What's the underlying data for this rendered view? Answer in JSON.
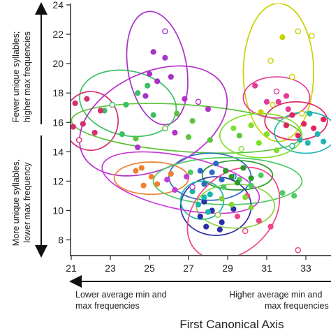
{
  "chart_data": {
    "type": "scatter",
    "xlim": [
      21,
      34
    ],
    "ylim": [
      7,
      24
    ],
    "x_ticks": [
      "21",
      "23",
      "25",
      "27",
      "29",
      "31",
      "33"
    ],
    "y_ticks": [
      "8",
      "10",
      "12",
      "14",
      "16",
      "18",
      "20",
      "22",
      "24"
    ],
    "xlabel": "First Canonical Axis",
    "x_annotation_left": [
      "Lower average min and",
      "max frequencies"
    ],
    "x_annotation_right": [
      "Higher average min and",
      "max frequencies"
    ],
    "y_annotation_top": [
      "Fewer unique syllables;",
      "higher max frequencies"
    ],
    "y_annotation_bottom": [
      "More unique  syllables,",
      "lower max frequency"
    ],
    "grid": false,
    "groups": [
      {
        "color": "#c9d200",
        "ellipse": {
          "cx": 31.6,
          "cy": 19.4,
          "rx": 1.8,
          "ry": 4.7,
          "angle": 0
        },
        "points": [
          [
            31.8,
            21.8,
            1
          ],
          [
            32.6,
            22.2,
            0
          ],
          [
            33.3,
            21.9,
            0
          ],
          [
            31.2,
            20.2,
            0
          ],
          [
            32.3,
            19.1,
            0
          ],
          [
            31.3,
            17.2,
            0
          ],
          [
            32.8,
            16.6,
            0
          ],
          [
            30.7,
            16.7,
            1
          ]
        ]
      },
      {
        "color": "#a632c8",
        "ellipse": {
          "cx": 25.4,
          "cy": 19.7,
          "rx": 1.5,
          "ry": 3.9,
          "angle": -10
        },
        "points": [
          [
            25.8,
            22.2,
            0
          ],
          [
            25.2,
            20.8,
            1
          ],
          [
            25.8,
            20.4,
            1
          ],
          [
            25.0,
            19.3,
            1
          ],
          [
            25.4,
            18.8,
            1
          ],
          [
            26.1,
            19.1,
            1
          ],
          [
            24.8,
            17.8,
            1
          ]
        ]
      },
      {
        "color": "#3cbf64",
        "ellipse": {
          "cx": 23.9,
          "cy": 17.3,
          "rx": 2.5,
          "ry": 2.2,
          "angle": 12
        },
        "points": [
          [
            24.4,
            18.0,
            1
          ],
          [
            24.9,
            18.5,
            1
          ],
          [
            23.8,
            17.2,
            1
          ],
          [
            23.1,
            17.2,
            0
          ],
          [
            25.2,
            16.5,
            1
          ],
          [
            22.7,
            16.8,
            1
          ],
          [
            23.6,
            15.2,
            1
          ]
        ]
      },
      {
        "color": "#d62e6e",
        "ellipse": {
          "cx": 22.0,
          "cy": 16.1,
          "rx": 1.4,
          "ry": 2.0,
          "angle": 0
        },
        "points": [
          [
            21.2,
            17.3,
            1
          ],
          [
            21.8,
            17.6,
            1
          ],
          [
            22.5,
            16.8,
            1
          ],
          [
            21.6,
            15.9,
            1
          ],
          [
            21.1,
            15.7,
            1
          ],
          [
            22.2,
            15.3,
            1
          ],
          [
            21.4,
            14.8,
            0
          ]
        ]
      },
      {
        "color": "#5cc43c",
        "ellipse": {
          "cx": 26.9,
          "cy": 15.6,
          "rx": 5.9,
          "ry": 1.6,
          "angle": 4
        },
        "points": [
          [
            24.3,
            14.9,
            1
          ],
          [
            25.8,
            15.6,
            0
          ],
          [
            26.4,
            16.6,
            1
          ],
          [
            27.2,
            16.1,
            1
          ],
          [
            28.1,
            14.8,
            1
          ],
          [
            27.0,
            15.0,
            1
          ],
          [
            29.6,
            15.1,
            1
          ]
        ]
      },
      {
        "color": "#b430c8",
        "ellipse": {
          "cx": 25.2,
          "cy": 16.1,
          "rx": 4.0,
          "ry": 3.3,
          "angle": -25
        },
        "points": [
          [
            26.8,
            17.6,
            1
          ],
          [
            27.5,
            17.4,
            0
          ],
          [
            28.0,
            16.9,
            1
          ],
          [
            26.3,
            15.3,
            1
          ],
          [
            24.4,
            14.3,
            1
          ]
        ]
      },
      {
        "color": "#e43c96",
        "ellipse": {
          "cx": 31.5,
          "cy": 17.7,
          "rx": 1.7,
          "ry": 1.4,
          "angle": 0
        },
        "points": [
          [
            30.4,
            18.5,
            1
          ],
          [
            31.5,
            18.1,
            0
          ],
          [
            32.0,
            17.8,
            1
          ],
          [
            31.0,
            17.4,
            1
          ],
          [
            32.1,
            16.9,
            1
          ],
          [
            31.6,
            17.4,
            1
          ]
        ]
      },
      {
        "color": "#e0245c",
        "ellipse": {
          "cx": 32.5,
          "cy": 16.1,
          "rx": 1.6,
          "ry": 1.3,
          "angle": 0
        },
        "points": [
          [
            32.3,
            16.5,
            1
          ],
          [
            32.9,
            15.9,
            1
          ],
          [
            33.4,
            15.6,
            1
          ],
          [
            32.6,
            15.1,
            1
          ],
          [
            33.9,
            16.2,
            1
          ],
          [
            32.0,
            15.8,
            1
          ]
        ]
      },
      {
        "color": "#22b4b4",
        "ellipse": {
          "cx": 33.0,
          "cy": 15.3,
          "rx": 1.6,
          "ry": 1.4,
          "angle": 0
        },
        "points": [
          [
            33.2,
            16.6,
            1
          ],
          [
            33.6,
            15.2,
            1
          ],
          [
            32.7,
            14.8,
            1
          ],
          [
            33.9,
            14.7,
            1
          ],
          [
            32.3,
            14.4,
            0
          ],
          [
            33.1,
            14.6,
            1
          ]
        ]
      },
      {
        "color": "#7ee02e",
        "ellipse": {
          "cx": 30.7,
          "cy": 15.1,
          "rx": 2.1,
          "ry": 1.5,
          "angle": 0
        },
        "points": [
          [
            29.3,
            15.6,
            1
          ],
          [
            30.2,
            15.8,
            1
          ],
          [
            31.0,
            15.2,
            1
          ],
          [
            30.6,
            14.6,
            1
          ],
          [
            31.5,
            14.1,
            1
          ],
          [
            29.7,
            14.2,
            0
          ]
        ]
      },
      {
        "color": "#f08030",
        "ellipse": {
          "cx": 25.1,
          "cy": 12.2,
          "rx": 1.9,
          "ry": 1.1,
          "angle": 0
        },
        "points": [
          [
            24.3,
            12.7,
            1
          ],
          [
            25.1,
            12.3,
            1
          ],
          [
            25.4,
            11.8,
            1
          ],
          [
            24.7,
            11.7,
            1
          ],
          [
            26.1,
            12.5,
            1
          ],
          [
            24.6,
            12.9,
            1
          ]
        ]
      },
      {
        "color": "#2a6bc8",
        "ellipse": {
          "cx": 28.1,
          "cy": 12.3,
          "rx": 2.1,
          "ry": 1.6,
          "angle": 0
        },
        "points": [
          [
            27.6,
            12.7,
            1
          ],
          [
            28.2,
            12.6,
            1
          ],
          [
            28.7,
            12.1,
            1
          ],
          [
            27.8,
            11.8,
            1
          ],
          [
            29.3,
            12.3,
            0
          ],
          [
            28.4,
            13.2,
            1
          ]
        ]
      },
      {
        "color": "#4eca64",
        "ellipse": {
          "cx": 29.0,
          "cy": 12.0,
          "rx": 3.8,
          "ry": 1.6,
          "angle": 0
        },
        "points": [
          [
            27.1,
            12.6,
            1
          ],
          [
            29.6,
            12.1,
            1
          ],
          [
            30.2,
            11.7,
            1
          ],
          [
            30.7,
            12.4,
            1
          ],
          [
            31.8,
            11.2,
            1
          ],
          [
            28.8,
            11.6,
            1
          ],
          [
            32.4,
            11.0,
            1
          ]
        ]
      },
      {
        "color": "#2a9a2a",
        "ellipse": {
          "cx": 29.5,
          "cy": 12.4,
          "rx": 1.8,
          "ry": 1.0,
          "angle": 0
        },
        "points": [
          [
            28.9,
            12.7,
            1
          ],
          [
            29.2,
            12.3,
            1
          ],
          [
            29.8,
            12.9,
            1
          ],
          [
            30.2,
            12.2,
            1
          ],
          [
            29.5,
            11.9,
            1
          ]
        ]
      },
      {
        "color": "#2e2ea8",
        "ellipse": {
          "cx": 28.4,
          "cy": 10.3,
          "rx": 1.8,
          "ry": 2.0,
          "angle": 0
        },
        "points": [
          [
            27.8,
            10.6,
            1
          ],
          [
            28.2,
            10.0,
            1
          ],
          [
            27.6,
            9.6,
            1
          ],
          [
            28.7,
            9.2,
            1
          ],
          [
            29.3,
            10.1,
            1
          ],
          [
            27.9,
            8.9,
            1
          ],
          [
            28.6,
            8.7,
            1
          ]
        ]
      },
      {
        "color": "#16b8a8",
        "ellipse": {
          "cx": 27.7,
          "cy": 10.7,
          "rx": 1.1,
          "ry": 1.3,
          "angle": 0
        },
        "points": [
          [
            27.2,
            11.3,
            1
          ],
          [
            27.8,
            10.9,
            1
          ],
          [
            28.1,
            11.1,
            1
          ],
          [
            27.5,
            10.4,
            1
          ],
          [
            28.0,
            9.9,
            1
          ]
        ]
      },
      {
        "color": "#f04488",
        "ellipse": {
          "cx": 29.3,
          "cy": 9.8,
          "rx": 2.7,
          "ry": 2.6,
          "angle": -45
        },
        "points": [
          [
            30.0,
            11.0,
            1
          ],
          [
            29.5,
            9.6,
            1
          ],
          [
            30.6,
            9.3,
            1
          ],
          [
            31.2,
            8.9,
            1
          ],
          [
            29.9,
            8.6,
            0
          ],
          [
            32.6,
            7.3,
            0
          ]
        ]
      },
      {
        "color": "#8ad23c",
        "ellipse": {
          "cx": 29.4,
          "cy": 10.3,
          "rx": 2.0,
          "ry": 1.5,
          "angle": 0
        },
        "points": [
          [
            28.7,
            10.8,
            1
          ],
          [
            29.2,
            10.4,
            1
          ],
          [
            29.9,
            10.9,
            1
          ],
          [
            30.2,
            10.2,
            1
          ],
          [
            28.5,
            9.7,
            0
          ]
        ]
      },
      {
        "color": "#c83ad6",
        "ellipse": {
          "cx": 26.6,
          "cy": 11.9,
          "rx": 4.1,
          "ry": 1.8,
          "angle": 12
        },
        "points": [
          [
            26.9,
            12.3,
            1
          ],
          [
            27.2,
            11.6,
            0
          ],
          [
            26.3,
            11.4,
            1
          ],
          [
            25.9,
            12.1,
            1
          ]
        ]
      }
    ]
  }
}
